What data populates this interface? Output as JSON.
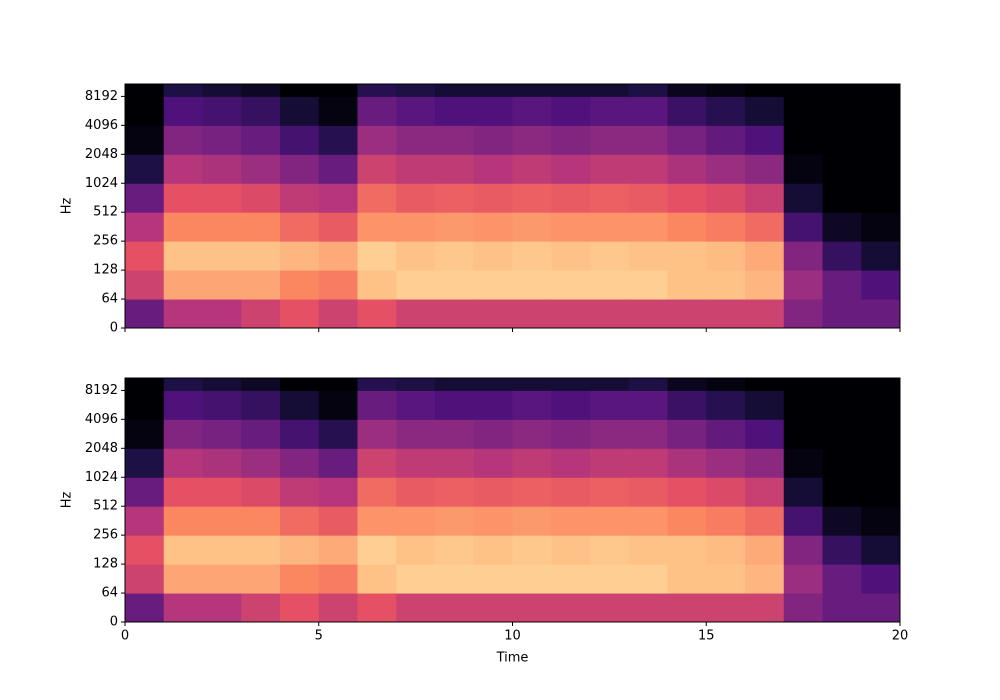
{
  "chart_data": [
    {
      "type": "spectrogram",
      "ylabel": "Hz",
      "x": [
        0,
        1,
        2,
        3,
        4,
        5,
        6,
        7,
        8,
        9,
        10,
        11,
        12,
        13,
        14,
        15,
        16,
        17,
        18,
        19,
        20
      ],
      "freq": [
        0,
        64,
        128,
        256,
        512,
        1024,
        2048,
        4096,
        8192,
        11025
      ],
      "xlim": [
        0,
        20
      ],
      "xticks": [
        0,
        5,
        10,
        15,
        20
      ],
      "ylim": [
        0,
        11025
      ],
      "yticks": [
        0,
        64,
        128,
        256,
        512,
        1024,
        2048,
        4096,
        8192
      ],
      "ylinthresh": 64,
      "zlim": [
        -80,
        0
      ],
      "colormap": "magma",
      "z": [
        [
          -55,
          -35,
          -30,
          -40,
          -55,
          -70,
          -78,
          -80,
          -80
        ],
        [
          -40,
          -15,
          -10,
          -20,
          -30,
          -40,
          -50,
          -60,
          -70
        ],
        [
          -40,
          -15,
          -10,
          -20,
          -30,
          -42,
          -52,
          -62,
          -72
        ],
        [
          -35,
          -15,
          -10,
          -20,
          -32,
          -45,
          -55,
          -65,
          -75
        ],
        [
          -30,
          -20,
          -12,
          -25,
          -38,
          -50,
          -62,
          -72,
          -80
        ],
        [
          -35,
          -22,
          -14,
          -28,
          -40,
          -55,
          -68,
          -78,
          -80
        ],
        [
          -30,
          -10,
          -8,
          -18,
          -25,
          -35,
          -45,
          -55,
          -68
        ],
        [
          -35,
          -8,
          -10,
          -18,
          -28,
          -38,
          -48,
          -58,
          -70
        ],
        [
          -35,
          -8,
          -9,
          -17,
          -27,
          -38,
          -48,
          -60,
          -72
        ],
        [
          -35,
          -8,
          -10,
          -18,
          -28,
          -40,
          -50,
          -60,
          -72
        ],
        [
          -35,
          -8,
          -9,
          -17,
          -27,
          -38,
          -48,
          -58,
          -72
        ],
        [
          -35,
          -8,
          -10,
          -18,
          -28,
          -40,
          -50,
          -60,
          -72
        ],
        [
          -35,
          -8,
          -9,
          -18,
          -27,
          -38,
          -48,
          -58,
          -72
        ],
        [
          -35,
          -8,
          -10,
          -18,
          -28,
          -38,
          -48,
          -58,
          -70
        ],
        [
          -35,
          -10,
          -10,
          -20,
          -30,
          -42,
          -52,
          -64,
          -76
        ],
        [
          -35,
          -10,
          -11,
          -22,
          -32,
          -45,
          -56,
          -68,
          -78
        ],
        [
          -35,
          -12,
          -14,
          -25,
          -36,
          -48,
          -60,
          -72,
          -80
        ],
        [
          -50,
          -45,
          -50,
          -62,
          -72,
          -78,
          -80,
          -80,
          -80
        ],
        [
          -55,
          -55,
          -65,
          -75,
          -80,
          -80,
          -80,
          -80,
          -80
        ],
        [
          -55,
          -60,
          -72,
          -78,
          -80,
          -80,
          -80,
          -80,
          -80
        ]
      ]
    },
    {
      "type": "spectrogram",
      "ylabel": "Hz",
      "xlabel": "Time",
      "x": [
        0,
        1,
        2,
        3,
        4,
        5,
        6,
        7,
        8,
        9,
        10,
        11,
        12,
        13,
        14,
        15,
        16,
        17,
        18,
        19,
        20
      ],
      "freq": [
        0,
        64,
        128,
        256,
        512,
        1024,
        2048,
        4096,
        8192,
        11025
      ],
      "xlim": [
        0,
        20
      ],
      "xticks": [
        0,
        5,
        10,
        15,
        20
      ],
      "ylim": [
        0,
        11025
      ],
      "yticks": [
        0,
        64,
        128,
        256,
        512,
        1024,
        2048,
        4096,
        8192
      ],
      "ylinthresh": 64,
      "zlim": [
        -80,
        0
      ],
      "colormap": "magma",
      "z": [
        [
          -55,
          -35,
          -30,
          -40,
          -55,
          -70,
          -78,
          -80,
          -80
        ],
        [
          -40,
          -15,
          -10,
          -20,
          -30,
          -40,
          -50,
          -60,
          -70
        ],
        [
          -40,
          -15,
          -10,
          -20,
          -30,
          -42,
          -52,
          -62,
          -72
        ],
        [
          -35,
          -15,
          -10,
          -20,
          -32,
          -45,
          -55,
          -65,
          -75
        ],
        [
          -30,
          -20,
          -12,
          -25,
          -38,
          -50,
          -62,
          -72,
          -80
        ],
        [
          -35,
          -22,
          -14,
          -28,
          -40,
          -55,
          -68,
          -78,
          -80
        ],
        [
          -30,
          -10,
          -8,
          -18,
          -25,
          -35,
          -45,
          -55,
          -68
        ],
        [
          -35,
          -8,
          -10,
          -18,
          -28,
          -38,
          -48,
          -58,
          -70
        ],
        [
          -35,
          -8,
          -9,
          -17,
          -27,
          -38,
          -48,
          -60,
          -72
        ],
        [
          -35,
          -8,
          -10,
          -18,
          -28,
          -40,
          -50,
          -60,
          -72
        ],
        [
          -35,
          -8,
          -9,
          -17,
          -27,
          -38,
          -48,
          -58,
          -72
        ],
        [
          -35,
          -8,
          -10,
          -18,
          -28,
          -40,
          -50,
          -60,
          -72
        ],
        [
          -35,
          -8,
          -9,
          -18,
          -27,
          -38,
          -48,
          -58,
          -72
        ],
        [
          -35,
          -8,
          -10,
          -18,
          -28,
          -38,
          -48,
          -58,
          -70
        ],
        [
          -35,
          -10,
          -10,
          -20,
          -30,
          -42,
          -52,
          -64,
          -76
        ],
        [
          -35,
          -10,
          -11,
          -22,
          -32,
          -45,
          -56,
          -68,
          -78
        ],
        [
          -35,
          -12,
          -14,
          -25,
          -36,
          -48,
          -60,
          -72,
          -80
        ],
        [
          -50,
          -45,
          -50,
          -62,
          -72,
          -78,
          -80,
          -80,
          -80
        ],
        [
          -55,
          -55,
          -65,
          -75,
          -80,
          -80,
          -80,
          -80,
          -80
        ],
        [
          -55,
          -60,
          -72,
          -78,
          -80,
          -80,
          -80,
          -80,
          -80
        ]
      ]
    }
  ]
}
